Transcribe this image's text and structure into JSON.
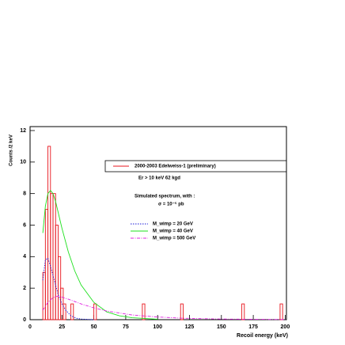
{
  "chart_data": {
    "type": "histogram",
    "y_label": "Counts /2 keV",
    "x_label": "Recoil energy (keV)",
    "name": "2000-2003 Edelweiss-1 (preliminary)",
    "color": "#e8141c",
    "legend_notes": [
      "Er > 10 keV  62 kgd",
      "Simulated spectrum, with :",
      "σ = 10⁻⁵ pb"
    ],
    "bins": [
      0,
      2,
      4,
      6,
      8,
      10,
      12,
      14,
      16,
      18,
      20,
      22,
      24,
      26,
      28,
      30,
      32,
      34,
      36,
      38,
      40,
      42,
      44,
      46,
      48,
      50,
      52,
      54,
      56,
      58,
      60,
      62,
      64,
      66,
      68,
      70,
      72,
      74,
      76,
      78,
      80,
      82,
      84,
      86,
      88,
      90,
      92,
      94,
      96,
      98,
      100,
      102,
      104,
      106,
      108,
      110,
      112,
      114,
      116,
      118,
      120,
      122,
      124,
      126,
      128,
      130,
      132,
      134,
      136,
      138,
      140,
      142,
      144,
      146,
      148,
      150,
      152,
      154,
      156,
      158,
      160,
      162,
      164,
      166,
      168,
      170,
      172,
      174,
      176,
      178,
      180,
      182,
      184,
      186,
      188,
      190,
      192,
      194,
      196,
      198,
      200
    ],
    "counts": [
      0,
      0,
      0,
      0,
      0,
      3,
      7,
      11,
      8,
      8,
      6,
      4,
      2,
      1,
      0,
      0,
      1,
      0,
      0,
      0,
      0,
      0,
      0,
      0,
      0,
      1,
      0,
      0,
      0,
      0,
      0,
      0,
      0,
      0,
      0,
      0,
      0,
      0,
      0,
      0,
      0,
      0,
      0,
      0,
      1,
      0,
      0,
      0,
      0,
      0,
      0,
      0,
      0,
      0,
      0,
      0,
      0,
      0,
      0,
      1,
      0,
      0,
      0,
      0,
      0,
      0,
      0,
      0,
      0,
      0,
      0,
      0,
      0,
      0,
      0,
      0,
      0,
      0,
      0,
      0,
      0,
      0,
      0,
      1,
      0,
      0,
      0,
      0,
      0,
      0,
      0,
      0,
      0,
      0,
      0,
      0,
      0,
      0,
      1,
      0
    ],
    "series": [
      {
        "name": "M_wimp =  20 GeV",
        "color": "#1a1ad8",
        "dash": "dotted",
        "x": [
          10,
          12,
          14,
          16,
          18,
          20,
          22,
          25,
          28,
          32,
          36,
          40,
          50
        ],
        "values": [
          2.5,
          3.8,
          3.9,
          3.4,
          2.8,
          2.2,
          1.6,
          1.0,
          0.6,
          0.25,
          0.1,
          0.04,
          0
        ]
      },
      {
        "name": "M_wimp =  40 GeV",
        "color": "#1ee01e",
        "dash": "solid",
        "x": [
          10,
          12,
          14,
          16,
          18,
          20,
          25,
          30,
          35,
          40,
          50,
          60,
          70,
          80,
          100
        ],
        "values": [
          5.5,
          7.2,
          8.0,
          8.2,
          8.0,
          7.5,
          5.8,
          4.3,
          3.1,
          2.2,
          1.1,
          0.5,
          0.25,
          0.12,
          0.03
        ]
      },
      {
        "name": "M_wimp = 500 GeV",
        "color": "#e020e0",
        "dash": "dashdot",
        "x": [
          10,
          14,
          18,
          22,
          26,
          30,
          40,
          50,
          60,
          80,
          100,
          120,
          150,
          200
        ],
        "values": [
          0.6,
          1.1,
          1.4,
          1.5,
          1.4,
          1.3,
          1.0,
          0.75,
          0.55,
          0.3,
          0.17,
          0.09,
          0.04,
          0.01
        ]
      }
    ],
    "xlim": [
      0,
      201
    ],
    "ylim": [
      0,
      12.25
    ],
    "xticks": [
      0,
      25,
      50,
      75,
      100,
      125,
      150,
      175,
      200
    ],
    "yticks": [
      0,
      2,
      4,
      6,
      8,
      10,
      12
    ]
  }
}
